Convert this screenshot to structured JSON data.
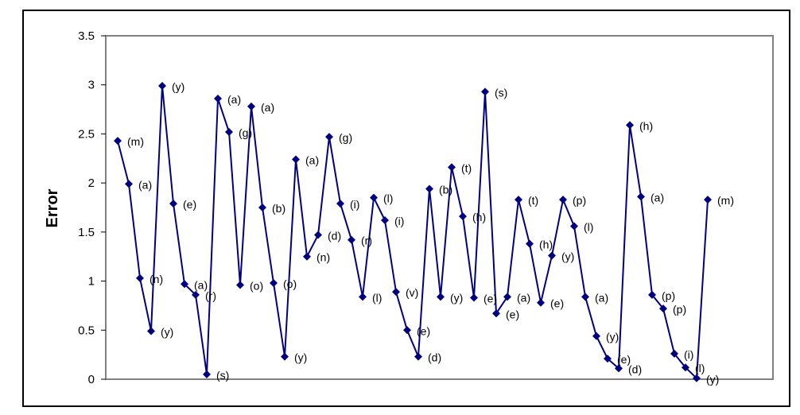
{
  "chart_data": {
    "type": "line",
    "title": "",
    "xlabel": "",
    "ylabel": "Error",
    "ylim": [
      0,
      3.5
    ],
    "yticks": [
      "0",
      "0.5",
      "1",
      "1.5",
      "2",
      "2.5",
      "3",
      "3.5"
    ],
    "grid": false,
    "legend": "none",
    "series": [
      {
        "color": "#000080",
        "values": [
          2.43,
          1.99,
          1.03,
          0.49,
          2.99,
          1.79,
          0.97,
          0.86,
          0.05,
          2.86,
          2.52,
          0.96,
          2.78,
          1.75,
          0.98,
          0.23,
          2.24,
          1.25,
          1.47,
          2.47,
          1.79,
          1.42,
          0.84,
          1.85,
          1.62,
          0.89,
          0.5,
          0.23,
          1.94,
          0.84,
          2.16,
          1.66,
          0.83,
          2.93,
          0.67,
          0.84,
          1.83,
          1.38,
          0.78,
          1.26,
          1.83,
          1.56,
          0.84,
          0.44,
          0.21,
          0.11,
          2.59,
          1.86,
          0.86,
          0.72,
          0.26,
          0.12,
          0.01,
          1.83
        ],
        "labels": [
          "(m)",
          "(a)",
          "(n)",
          "(y)",
          "(y)",
          "(e)",
          "(a)",
          "(r)",
          "(s)",
          "(a)",
          "(g)",
          "(o)",
          "(a)",
          "(b)",
          "(o)",
          "(y)",
          "(a)",
          "(n)",
          "(d)",
          "(g)",
          "(i)",
          "(r)",
          "(l)",
          "(l)",
          "(i)",
          "(v)",
          "(e)",
          "(d)",
          "(b)",
          "(y)",
          "(t)",
          "(h)",
          "(e)",
          "(s)",
          "(e)",
          "(a)",
          "(t)",
          "(h)",
          "(e)",
          "(y)",
          "(p)",
          "(l)",
          "(a)",
          "(y)",
          "(e)",
          "(d)",
          "(h)",
          "(a)",
          "(p)",
          "(p)",
          "(i)",
          "(l)",
          "(y)",
          "(m)"
        ]
      }
    ]
  }
}
